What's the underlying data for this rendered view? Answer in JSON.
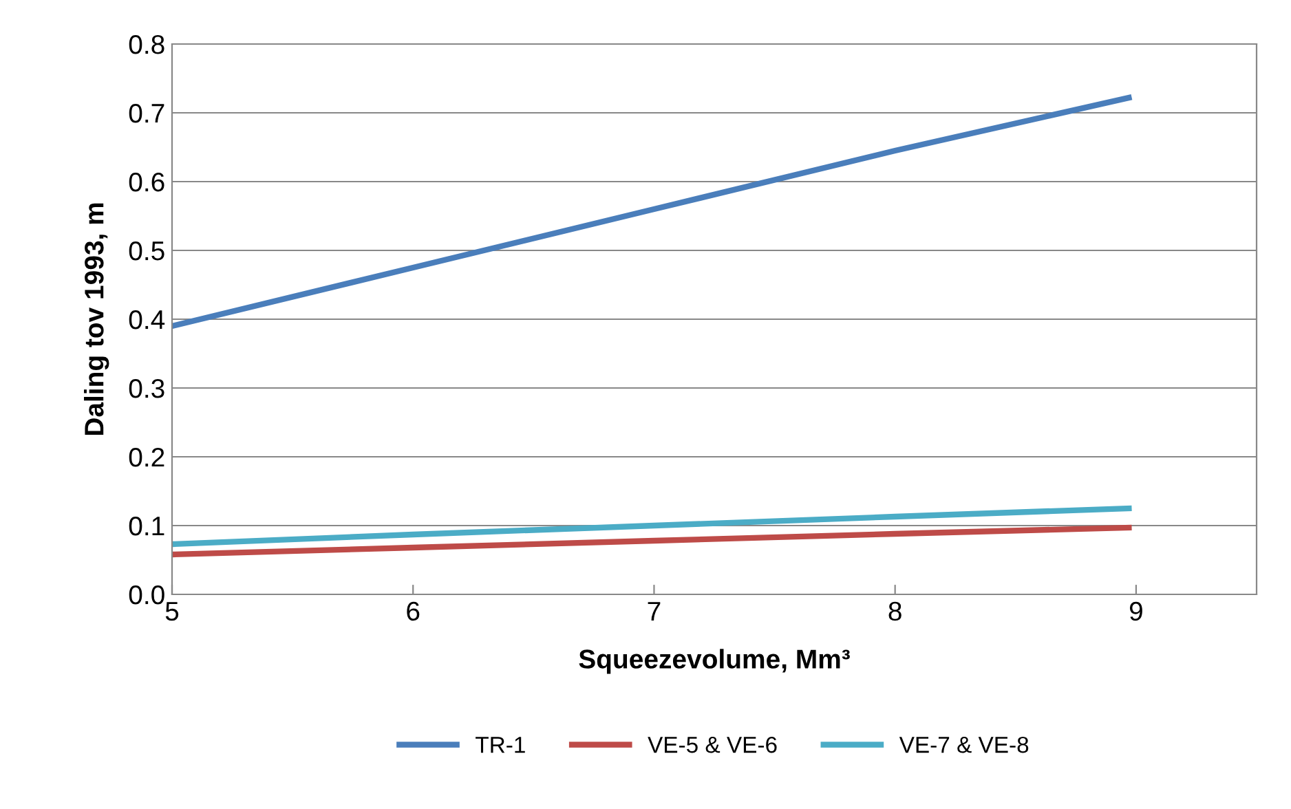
{
  "chart_data": {
    "type": "line",
    "xlabel": "Squeezevolume, Mm³",
    "ylabel": "Daling tov 1993, m",
    "xlim": [
      5,
      9.5
    ],
    "xticks": [
      5,
      6,
      7,
      8,
      9
    ],
    "ylim": [
      0,
      0.8
    ],
    "yticks": [
      {
        "value": 0,
        "label": "0.0"
      },
      0.1,
      0.2,
      0.3,
      0.4,
      0.5,
      0.6,
      0.7,
      0.8
    ],
    "grid": "y",
    "legend": "bottom",
    "marker": "none",
    "line_style": "solid",
    "series": [
      {
        "name": "TR-1",
        "color": "#4a7ebb",
        "x": [
          5,
          6,
          7,
          8,
          8.97
        ],
        "values": [
          0.39,
          0.475,
          0.56,
          0.645,
          0.722
        ]
      },
      {
        "name": "VE-5 & VE-6",
        "color": "#be4b48",
        "x": [
          5,
          6,
          7,
          8,
          8.97
        ],
        "values": [
          0.058,
          0.068,
          0.078,
          0.088,
          0.097
        ]
      },
      {
        "name": "VE-7 & VE-8",
        "color": "#4bacc6",
        "x": [
          5,
          6,
          7,
          8,
          8.97
        ],
        "values": [
          0.073,
          0.087,
          0.1,
          0.113,
          0.125
        ]
      }
    ]
  }
}
